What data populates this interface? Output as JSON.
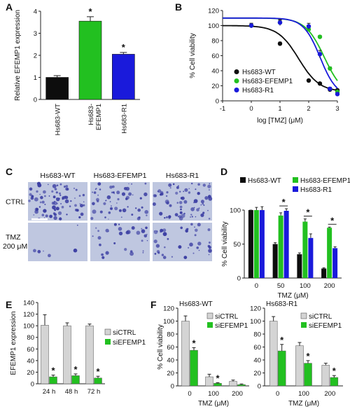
{
  "panels": {
    "A": {
      "label": "A",
      "ylabel": "Relative EFEMP1 expression"
    },
    "B": {
      "label": "B"
    },
    "C": {
      "label": "C"
    },
    "D": {
      "label": "D"
    },
    "E": {
      "label": "E"
    },
    "F": {
      "label": "F"
    }
  },
  "colors": {
    "black": "#0d0d0d",
    "green": "#22c020",
    "blue": "#1a1adb",
    "gray": "#d4d4d4",
    "photo_bg": "#bfc7e0",
    "colony": "#3c3fa3"
  },
  "panel_c": {
    "columns": [
      "Hs683-WT",
      "Hs683-EFEMP1",
      "Hs683-R1"
    ],
    "rows": [
      "CTRL",
      "TMZ",
      "200 μM"
    ],
    "colony_density": [
      [
        0.55,
        0.35,
        0.45
      ],
      [
        0.04,
        0.2,
        0.25
      ]
    ]
  },
  "chart_data": [
    {
      "panel": "A",
      "type": "bar",
      "categories": [
        "Hs683-WT",
        "Hs683-\nEFEMP1",
        "Hs683-R1"
      ],
      "values": [
        1.0,
        3.55,
        2.05
      ],
      "errors": [
        0.08,
        0.2,
        0.08
      ],
      "colors": [
        "#0d0d0d",
        "#22c020",
        "#1a1adb"
      ],
      "significance": [
        "",
        "*",
        "*"
      ],
      "ylabel": "Relative EFEMP1 expression",
      "ylim": [
        0,
        4
      ],
      "yticks": [
        0,
        1,
        2,
        3,
        4
      ]
    },
    {
      "panel": "B",
      "type": "scatter",
      "xlabel": "log [TMZ] (μM)",
      "ylabel": "% Cell viability",
      "xlim": [
        -1,
        3
      ],
      "ylim": [
        0,
        120
      ],
      "xticks": [
        -1,
        0,
        1,
        2,
        3
      ],
      "yticks": [
        0,
        20,
        40,
        60,
        80,
        100,
        120
      ],
      "legend_placement": "bottom-left",
      "series": [
        {
          "name": "Hs683-WT",
          "color": "#0d0d0d",
          "x": [
            0,
            1,
            2,
            2.39,
            2.74,
            3
          ],
          "y": [
            100,
            76,
            27,
            23,
            15,
            14
          ],
          "err": [
            2,
            2,
            1.5,
            1.5,
            1.5,
            1.5
          ],
          "fit": {
            "top": 100,
            "bottom": 12,
            "log_ec50": 1.65,
            "hill": 1.2
          }
        },
        {
          "name": "Hs683-EFEMP1",
          "color": "#22c020",
          "x": [
            0,
            1,
            2,
            2.39,
            2.74,
            3
          ],
          "y": [
            100,
            104,
            95,
            85,
            43,
            12
          ],
          "err": [
            3,
            3,
            3,
            2,
            2,
            2
          ],
          "fit": {
            "top": 110,
            "bottom": 5,
            "log_ec50": 2.55,
            "hill": 1.3
          }
        },
        {
          "name": "Hs683-R1",
          "color": "#1a1adb",
          "x": [
            0,
            1,
            2,
            2.39,
            2.74,
            3
          ],
          "y": [
            100,
            104,
            99,
            62,
            16,
            9
          ],
          "err": [
            3,
            4,
            4,
            5,
            2,
            2
          ],
          "fit": {
            "top": 110,
            "bottom": 5,
            "log_ec50": 2.4,
            "hill": 1.5
          }
        }
      ]
    },
    {
      "panel": "D",
      "type": "bar",
      "categories": [
        "0",
        "50",
        "100",
        "200"
      ],
      "xlabel": "TMZ (μM)",
      "ylabel": "% Cell viability",
      "ylim": [
        0,
        100
      ],
      "yticks": [
        0,
        50,
        100
      ],
      "legend_placement": "top",
      "series": [
        {
          "name": "Hs683-WT",
          "color": "#0d0d0d",
          "values": [
            100,
            50,
            35,
            14
          ],
          "errors": [
            0,
            2,
            2,
            1
          ]
        },
        {
          "name": "Hs683-EFEMP1",
          "color": "#22c020",
          "values": [
            100,
            92,
            83,
            74
          ],
          "errors": [
            4,
            4,
            4,
            1
          ]
        },
        {
          "name": "Hs683-R1",
          "color": "#1a1adb",
          "values": [
            100,
            99,
            59,
            44
          ],
          "errors": [
            5,
            3,
            6,
            2
          ]
        }
      ],
      "significance": [
        "",
        "*",
        "*",
        "*"
      ]
    },
    {
      "panel": "E",
      "type": "bar",
      "categories": [
        "24 h",
        "48 h",
        "72 h"
      ],
      "ylabel": "EFEMP1 expression",
      "ylim": [
        0,
        140
      ],
      "yticks": [
        0,
        20,
        40,
        60,
        80,
        100,
        120,
        140
      ],
      "legend_placement": "right",
      "series": [
        {
          "name": "siCTRL",
          "color": "#d4d4d4",
          "values": [
            101,
            100,
            100
          ],
          "errors": [
            18,
            5,
            3
          ]
        },
        {
          "name": "siEFEMP1",
          "color": "#22c020",
          "values": [
            12,
            14,
            10
          ],
          "errors": [
            3,
            3,
            3
          ]
        }
      ],
      "significance": [
        "*",
        "*",
        "*"
      ]
    },
    {
      "panel": "F",
      "type": "bar",
      "subplots": [
        {
          "title": "Hs683-WT",
          "categories": [
            "0",
            "100",
            "200"
          ],
          "series": [
            {
              "name": "siCTRL",
              "color": "#d4d4d4",
              "values": [
                100,
                14,
                7
              ],
              "errors": [
                8,
                4,
                2
              ]
            },
            {
              "name": "siEFEMP1",
              "color": "#22c020",
              "values": [
                55,
                4,
                2
              ],
              "errors": [
                4,
                1,
                1
              ]
            }
          ],
          "significance": [
            "*",
            "*",
            ""
          ]
        },
        {
          "title": "Hs683-R1",
          "categories": [
            "0",
            "100",
            "200"
          ],
          "series": [
            {
              "name": "siCTRL",
              "color": "#d4d4d4",
              "values": [
                100,
                62,
                32
              ],
              "errors": [
                7,
                5,
                3
              ]
            },
            {
              "name": "siEFEMP1",
              "color": "#22c020",
              "values": [
                54,
                35,
                13
              ],
              "errors": [
                10,
                4,
                3
              ]
            }
          ],
          "significance": [
            "*",
            "*",
            "*"
          ]
        }
      ],
      "xlabel": "TMZ (μM)",
      "ylabel": "% Cell viability",
      "ylim": [
        0,
        120
      ],
      "yticks": [
        0,
        20,
        40,
        60,
        80,
        100,
        120
      ],
      "legend_placement": "top-right"
    }
  ]
}
